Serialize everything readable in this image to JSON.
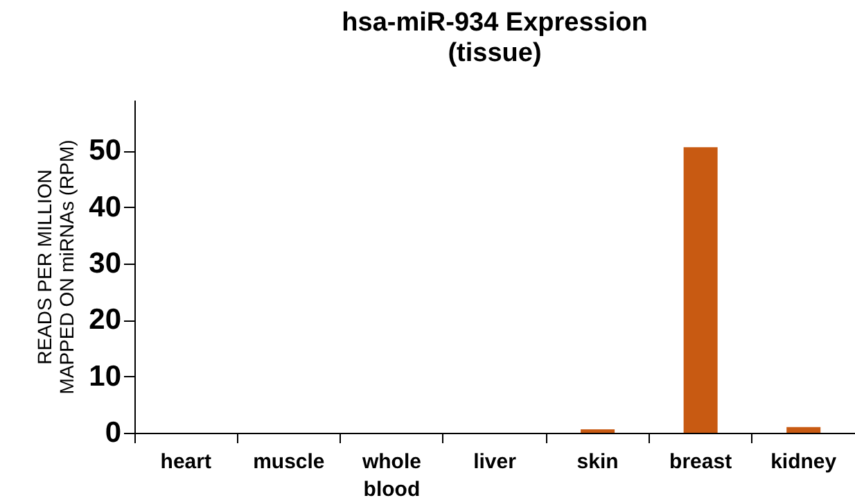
{
  "chart_data": {
    "type": "bar",
    "title": "hsa-miR-934 Expression",
    "subtitle": "(tissue)",
    "ylabel": "READS PER MILLION MAPPED ON miRNAs (RPM)",
    "categories": [
      "heart",
      "muscle",
      "whole blood",
      "liver",
      "skin",
      "breast",
      "kidney"
    ],
    "values": [
      0,
      0,
      0,
      0,
      0.6,
      50.6,
      1.0
    ],
    "color": "#c85a12",
    "ylim": [
      0,
      59
    ],
    "yticks": [
      0,
      10,
      20,
      30,
      40,
      50
    ],
    "grid": false
  }
}
